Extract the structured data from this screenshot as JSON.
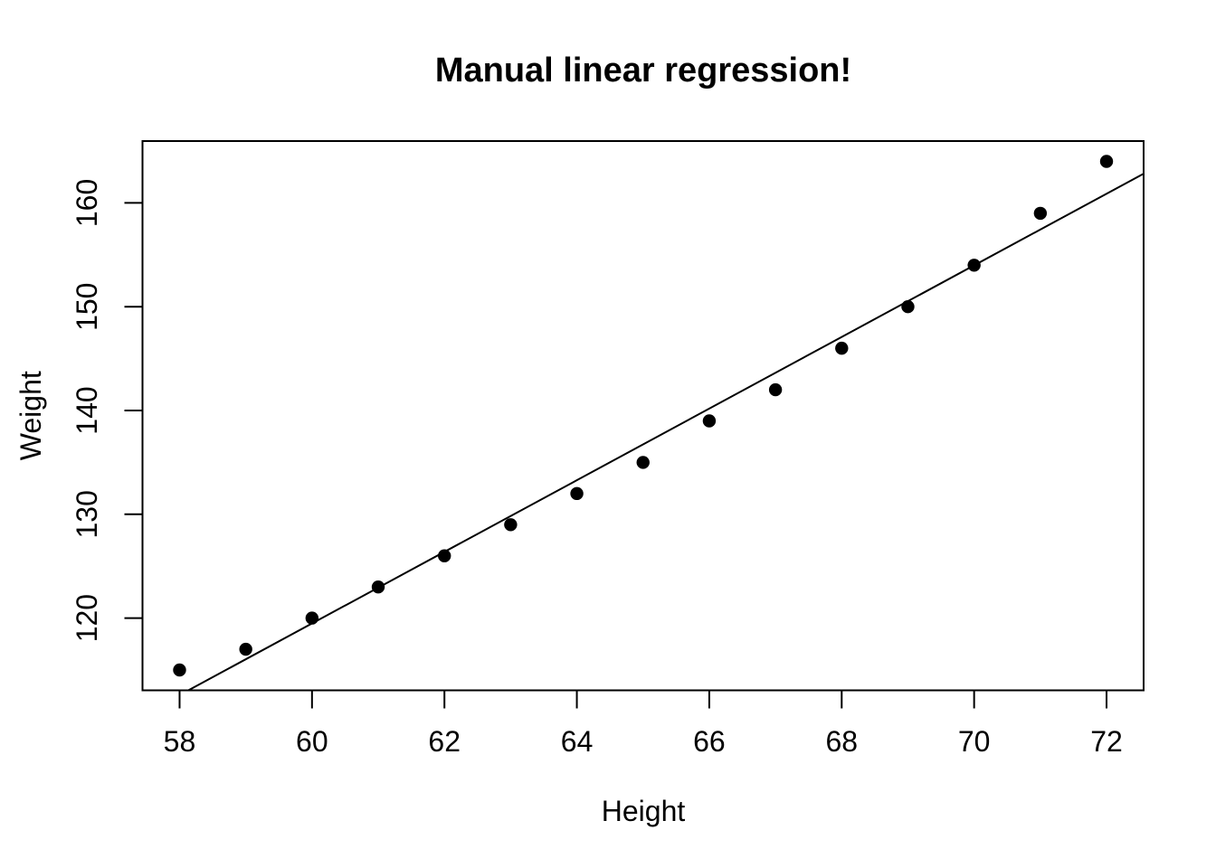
{
  "chart_data": {
    "type": "scatter",
    "title": "Manual linear regression!",
    "xlabel": "Height",
    "ylabel": "Weight",
    "x": [
      58,
      59,
      60,
      61,
      62,
      63,
      64,
      65,
      66,
      67,
      68,
      69,
      70,
      71,
      72
    ],
    "y": [
      115,
      117,
      120,
      123,
      126,
      129,
      132,
      135,
      139,
      142,
      146,
      150,
      154,
      159,
      164
    ],
    "xticks": [
      58,
      60,
      62,
      64,
      66,
      68,
      70,
      72
    ],
    "yticks": [
      120,
      130,
      140,
      150,
      160
    ],
    "xlim": [
      57.44,
      72.56
    ],
    "ylim": [
      113.04,
      165.96
    ],
    "regression_line": {
      "slope": 3.45,
      "intercept": -87.51667
    },
    "marker": "filled-circle",
    "grid": false,
    "legend": null,
    "colors": {
      "points": "#000000",
      "line": "#000000",
      "axis": "#000000",
      "text": "#000000",
      "background": "#ffffff"
    }
  }
}
